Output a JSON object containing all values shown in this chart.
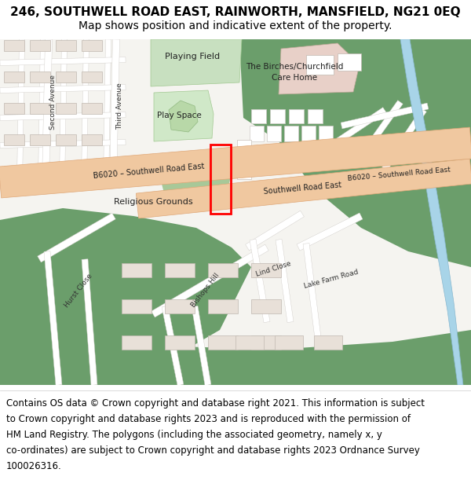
{
  "title_line1": "246, SOUTHWELL ROAD EAST, RAINWORTH, MANSFIELD, NG21 0EQ",
  "title_line2": "Map shows position and indicative extent of the property.",
  "footer_lines": [
    "Contains OS data © Crown copyright and database right 2021. This information is subject",
    "to Crown copyright and database rights 2023 and is reproduced with the permission of",
    "HM Land Registry. The polygons (including the associated geometry, namely x, y",
    "co-ordinates) are subject to Crown copyright and database rights 2023 Ordnance Survey",
    "100026316."
  ],
  "map_bg": "#f5f4f0",
  "road_color": "#f0c8a0",
  "road_stroke": "#e0a878",
  "green_dark": "#6b9e6b",
  "green_light": "#c8e0c0",
  "green_mid": "#8fb87e",
  "building_color": "#e8e0d8",
  "building_stroke": "#c0b8b0",
  "water_color": "#a8d4e8",
  "plot_rect_color": "#ff0000",
  "street_edge": "#d0ccc8",
  "title_fontsize": 11,
  "subtitle_fontsize": 10,
  "footer_fontsize": 8.5,
  "fig_width": 6.0,
  "fig_height": 6.25,
  "dpi": 100
}
